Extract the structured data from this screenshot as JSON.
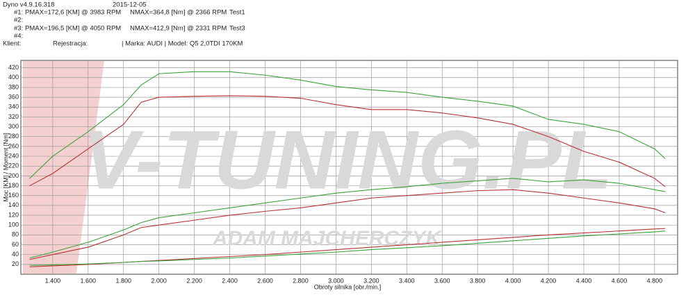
{
  "header": {
    "version": "Dyno v4.9.16.318",
    "date": "2015-12-05",
    "runs": [
      {
        "id": "#1:",
        "pmax": "PMAX=172,6 [KM] @ 3983 RPM",
        "nmax": "NMAX=364,8 [Nm] @ 2366 RPM",
        "name": "Test1"
      },
      {
        "id": "#2:"
      },
      {
        "id": "#3:",
        "pmax": "PMAX=196,5 [KM] @ 4050 RPM",
        "nmax": "NMAX=412,9 [Nm] @ 2331 RPM",
        "name": "Test3"
      },
      {
        "id": "#4:"
      }
    ],
    "client": "Klient:",
    "registration": "Rejestracja:",
    "vehicle": "| Marka: AUDI | Model: Q5 2,0TDI 170KM"
  },
  "chart_data": {
    "type": "line",
    "xlabel": "Obroty silnika [obr./min.]",
    "ylabel": "Moc [KM] / Moment [Nm]",
    "watermark": "V-TUNING.PL",
    "watermark_sub": "ADAM MAJCHERCZYK",
    "grid": true,
    "xlim": [
      1220,
      4930
    ],
    "ylim": [
      0,
      435
    ],
    "xticks": [
      {
        "value": 1400,
        "label": "1.400"
      },
      {
        "value": 1600,
        "label": "1.600"
      },
      {
        "value": 1800,
        "label": "1.800"
      },
      {
        "value": 2000,
        "label": "2.000"
      },
      {
        "value": 2200,
        "label": "2.200"
      },
      {
        "value": 2400,
        "label": "2.400"
      },
      {
        "value": 2600,
        "label": "2.600"
      },
      {
        "value": 2800,
        "label": "2.800"
      },
      {
        "value": 3000,
        "label": "3.000"
      },
      {
        "value": 3200,
        "label": "3.200"
      },
      {
        "value": 3400,
        "label": "3.400"
      },
      {
        "value": 3600,
        "label": "3.600"
      },
      {
        "value": 3800,
        "label": "3.800"
      },
      {
        "value": 4000,
        "label": "4.000"
      },
      {
        "value": 4200,
        "label": "4.200"
      },
      {
        "value": 4400,
        "label": "4.400"
      },
      {
        "value": 4600,
        "label": "4.600"
      },
      {
        "value": 4800,
        "label": "4.800"
      }
    ],
    "yticks": [
      20,
      40,
      60,
      80,
      100,
      120,
      140,
      160,
      180,
      200,
      220,
      240,
      260,
      280,
      300,
      320,
      340,
      360,
      380,
      400,
      420
    ],
    "x": [
      1270,
      1400,
      1600,
      1800,
      1900,
      2000,
      2200,
      2400,
      2600,
      2800,
      3000,
      3200,
      3400,
      3600,
      3800,
      4000,
      4200,
      4400,
      4600,
      4800,
      4860
    ],
    "series": [
      {
        "color": "#3aa33a",
        "values": [
          195,
          240,
          290,
          345,
          385,
          408,
          412,
          412,
          405,
          395,
          382,
          375,
          370,
          360,
          352,
          342,
          315,
          305,
          290,
          255,
          235
        ]
      },
      {
        "color": "#b83232",
        "values": [
          180,
          205,
          255,
          305,
          350,
          360,
          362,
          363,
          362,
          358,
          345,
          335,
          335,
          328,
          318,
          305,
          280,
          250,
          228,
          195,
          178
        ]
      },
      {
        "color": "#3aa33a",
        "values": [
          33,
          45,
          65,
          90,
          105,
          115,
          125,
          135,
          145,
          155,
          165,
          172,
          178,
          185,
          190,
          195,
          188,
          192,
          185,
          172,
          168
        ]
      },
      {
        "color": "#b83232",
        "values": [
          30,
          40,
          55,
          80,
          95,
          100,
          110,
          120,
          128,
          135,
          145,
          155,
          160,
          165,
          170,
          172,
          165,
          155,
          145,
          133,
          125
        ]
      },
      {
        "color": "#b83232",
        "values": [
          15,
          17,
          20,
          24,
          26,
          28,
          32,
          36,
          40,
          45,
          50,
          55,
          60,
          65,
          70,
          75,
          80,
          84,
          88,
          92,
          93
        ]
      },
      {
        "color": "#3aa33a",
        "values": [
          18,
          19,
          21,
          24,
          26,
          27,
          30,
          33,
          37,
          41,
          45,
          50,
          54,
          58,
          63,
          68,
          73,
          78,
          82,
          86,
          88
        ]
      }
    ]
  }
}
